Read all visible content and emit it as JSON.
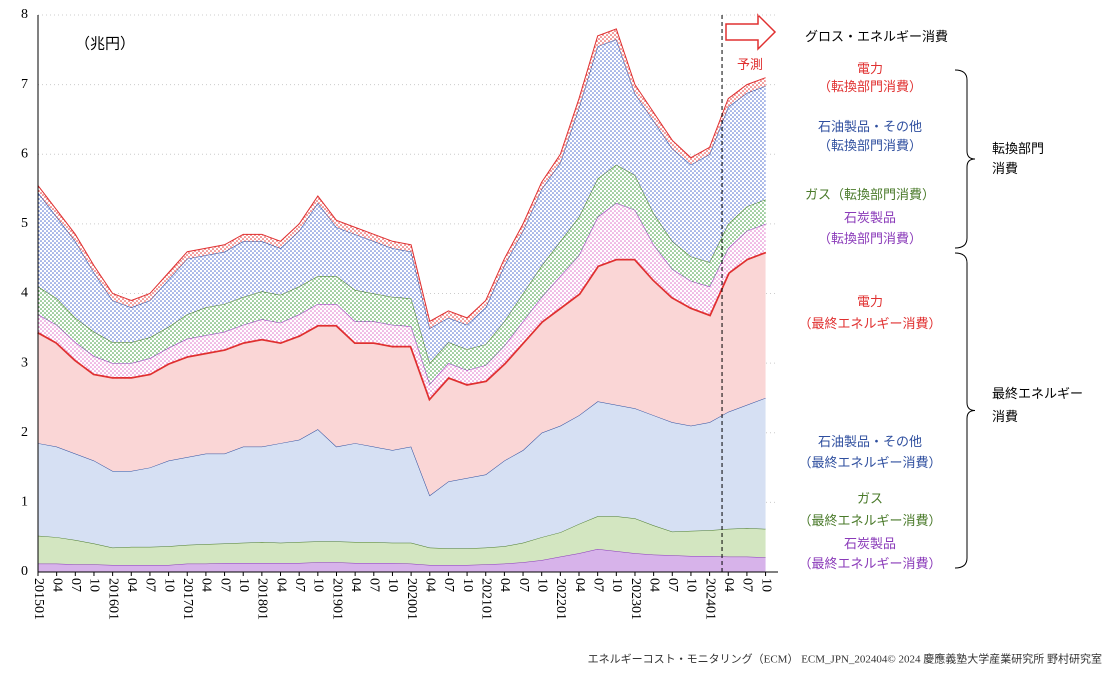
{
  "chart_data": {
    "type": "stacked-area",
    "unit_label": "（兆円）",
    "gross_label": "グロス・エネルギー消費",
    "forecast_label": "予測",
    "source": "エネルギーコスト・モニタリング（ECM） ECM_JPN_202404© 2024 慶應義塾大学産業研究所 野村研究室",
    "categories": [
      "201501",
      "04",
      "07",
      "10",
      "201601",
      "04",
      "07",
      "10",
      "201701",
      "04",
      "07",
      "10",
      "201801",
      "04",
      "07",
      "10",
      "201901",
      "04",
      "07",
      "10",
      "202001",
      "04",
      "07",
      "10",
      "202101",
      "04",
      "07",
      "10",
      "202201",
      "04",
      "07",
      "10",
      "202301",
      "04",
      "07",
      "10",
      "202401",
      "04",
      "07",
      "10"
    ],
    "ylim": [
      0,
      8
    ],
    "yticks": [
      0,
      1,
      2,
      3,
      4,
      5,
      6,
      7,
      8
    ],
    "grid": true,
    "series": [
      {
        "name": [
          "石炭製品",
          "（最終エネルギー消費）"
        ],
        "color": "#8a3ab9",
        "fill": "#d7b3ea",
        "dotted": false,
        "values": [
          0.12,
          0.12,
          0.11,
          0.11,
          0.1,
          0.1,
          0.1,
          0.1,
          0.12,
          0.12,
          0.13,
          0.13,
          0.13,
          0.13,
          0.13,
          0.14,
          0.14,
          0.13,
          0.13,
          0.13,
          0.12,
          0.1,
          0.1,
          0.1,
          0.11,
          0.12,
          0.14,
          0.17,
          0.22,
          0.27,
          0.33,
          0.3,
          0.27,
          0.25,
          0.24,
          0.23,
          0.23,
          0.22,
          0.22,
          0.21
        ]
      },
      {
        "name": [
          "ガス",
          "（最終エネルギー消費）"
        ],
        "color": "#4a7a2a",
        "fill": "#d3e6c1",
        "dotted": false,
        "values": [
          0.4,
          0.38,
          0.35,
          0.3,
          0.25,
          0.26,
          0.26,
          0.27,
          0.27,
          0.28,
          0.28,
          0.29,
          0.3,
          0.29,
          0.3,
          0.3,
          0.3,
          0.3,
          0.3,
          0.29,
          0.3,
          0.25,
          0.24,
          0.24,
          0.24,
          0.25,
          0.28,
          0.33,
          0.35,
          0.42,
          0.47,
          0.5,
          0.5,
          0.42,
          0.34,
          0.36,
          0.37,
          0.4,
          0.41,
          0.41
        ]
      },
      {
        "name": [
          "石油製品・その他",
          "（最終エネルギー消費）"
        ],
        "color": "#2f4f9f",
        "fill": "#d6e0f3",
        "dotted": false,
        "values": [
          1.33,
          1.3,
          1.24,
          1.19,
          1.1,
          1.09,
          1.14,
          1.23,
          1.26,
          1.3,
          1.29,
          1.38,
          1.37,
          1.43,
          1.47,
          1.61,
          1.36,
          1.42,
          1.37,
          1.33,
          1.38,
          0.75,
          0.96,
          1.01,
          1.05,
          1.23,
          1.33,
          1.5,
          1.53,
          1.56,
          1.65,
          1.6,
          1.58,
          1.58,
          1.57,
          1.51,
          1.55,
          1.68,
          1.77,
          1.88
        ]
      },
      {
        "name": [
          "電力",
          "（最終エネルギー消費）"
        ],
        "color": "#e03030",
        "fill": "#fad6d6",
        "dotted": false,
        "values": [
          1.6,
          1.5,
          1.35,
          1.25,
          1.35,
          1.35,
          1.35,
          1.4,
          1.45,
          1.45,
          1.5,
          1.5,
          1.55,
          1.45,
          1.5,
          1.5,
          1.75,
          1.45,
          1.5,
          1.5,
          1.45,
          1.4,
          1.5,
          1.35,
          1.35,
          1.4,
          1.55,
          1.6,
          1.7,
          1.75,
          1.95,
          2.1,
          2.15,
          1.95,
          1.8,
          1.7,
          1.55,
          2.0,
          2.1,
          2.1
        ]
      },
      {
        "name": [
          "石炭製品",
          "（転換部門消費）"
        ],
        "color": "#8a3ab9",
        "fill": "#e070c8",
        "dotted": true,
        "values": [
          0.25,
          0.25,
          0.25,
          0.25,
          0.2,
          0.2,
          0.22,
          0.22,
          0.25,
          0.25,
          0.25,
          0.25,
          0.28,
          0.28,
          0.3,
          0.3,
          0.3,
          0.3,
          0.3,
          0.3,
          0.28,
          0.2,
          0.2,
          0.2,
          0.22,
          0.25,
          0.3,
          0.35,
          0.45,
          0.55,
          0.7,
          0.8,
          0.7,
          0.5,
          0.4,
          0.38,
          0.4,
          0.35,
          0.4,
          0.4
        ]
      },
      {
        "name": [
          "ガス（転換部門消費）"
        ],
        "color": "#4a7a2a",
        "fill": "#3a9a3a",
        "dotted": true,
        "values": [
          0.4,
          0.38,
          0.35,
          0.35,
          0.3,
          0.3,
          0.3,
          0.3,
          0.35,
          0.4,
          0.4,
          0.4,
          0.4,
          0.4,
          0.4,
          0.4,
          0.4,
          0.45,
          0.4,
          0.4,
          0.4,
          0.3,
          0.3,
          0.3,
          0.3,
          0.35,
          0.4,
          0.45,
          0.5,
          0.55,
          0.55,
          0.55,
          0.5,
          0.45,
          0.4,
          0.35,
          0.35,
          0.35,
          0.35,
          0.35
        ]
      },
      {
        "name": [
          "石油製品・その他",
          "（転換部門消費）"
        ],
        "color": "#2f4f9f",
        "fill": "#4a6ad0",
        "dotted": true,
        "values": [
          1.35,
          1.17,
          1.1,
          0.85,
          0.6,
          0.5,
          0.53,
          0.68,
          0.8,
          0.75,
          0.75,
          0.8,
          0.72,
          0.67,
          0.8,
          1.05,
          0.7,
          0.8,
          0.75,
          0.7,
          0.67,
          0.5,
          0.35,
          0.35,
          0.53,
          0.8,
          0.9,
          1.1,
          1.13,
          1.57,
          1.9,
          1.8,
          1.17,
          1.33,
          1.33,
          1.32,
          1.55,
          1.68,
          1.63,
          1.63
        ]
      },
      {
        "name": [
          "電力",
          "（転換部門消費）"
        ],
        "color": "#e03030",
        "fill": "#e03030",
        "dotted": true,
        "values": [
          0.1,
          0.1,
          0.1,
          0.1,
          0.1,
          0.1,
          0.1,
          0.1,
          0.1,
          0.1,
          0.1,
          0.1,
          0.1,
          0.1,
          0.1,
          0.1,
          0.1,
          0.1,
          0.1,
          0.1,
          0.1,
          0.1,
          0.1,
          0.1,
          0.1,
          0.1,
          0.1,
          0.1,
          0.12,
          0.13,
          0.15,
          0.15,
          0.13,
          0.12,
          0.12,
          0.1,
          0.1,
          0.12,
          0.12,
          0.12
        ]
      }
    ],
    "groups": [
      {
        "label": [
          "転換部門",
          "消費"
        ]
      },
      {
        "label": [
          "最終エネルギー",
          "消費"
        ]
      }
    ]
  }
}
